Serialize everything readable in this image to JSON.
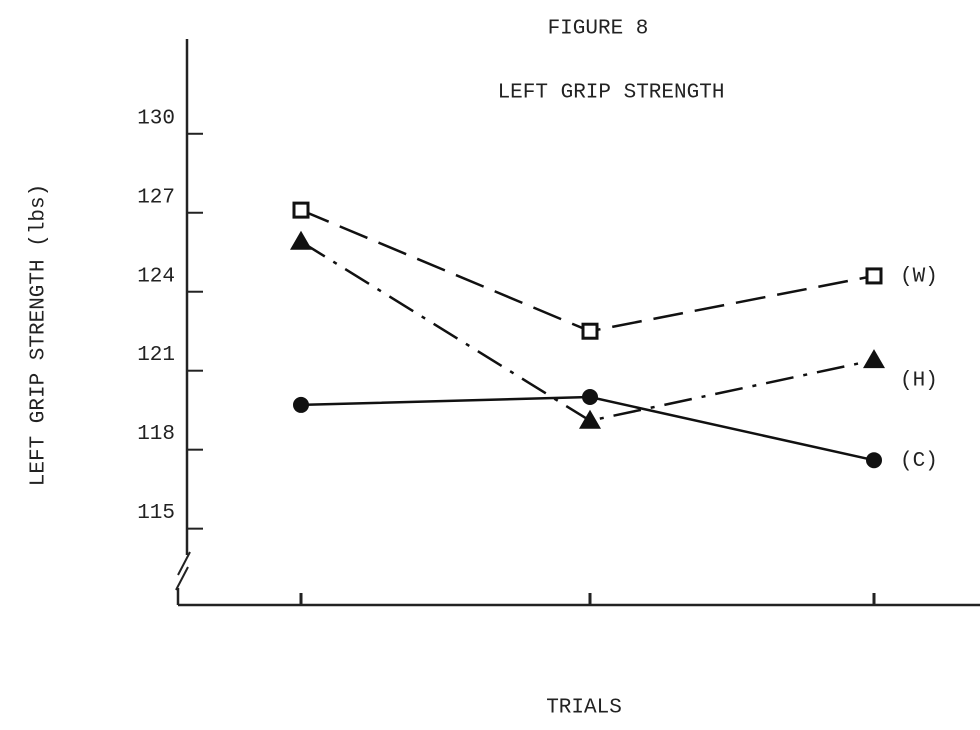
{
  "chart_data": {
    "type": "line",
    "title": "FIGURE 8",
    "subtitle": "LEFT GRIP STRENGTH",
    "x_label": "TRIALS",
    "y_label": "LEFT GRIP STRENGTH (lbs)",
    "categories": [
      null,
      null,
      null
    ],
    "series": [
      {
        "name": "(W)",
        "color": "#111111",
        "dash": "dashed",
        "marker": "open-square",
        "values": [
          127.1,
          122.5,
          124.6
        ]
      },
      {
        "name": "(H)",
        "color": "#111111",
        "dash": "dash-dot",
        "marker": "triangle",
        "values": [
          125.9,
          119.1,
          121.4
        ]
      },
      {
        "name": "(C)",
        "color": "#111111",
        "dash": "solid",
        "marker": "circle",
        "values": [
          119.7,
          120.0,
          117.6
        ]
      }
    ],
    "ylim": [
      112.1,
      133.6
    ],
    "yticks": [
      115,
      118,
      121,
      124,
      127,
      130
    ],
    "axis_break": true,
    "grid": false
  }
}
